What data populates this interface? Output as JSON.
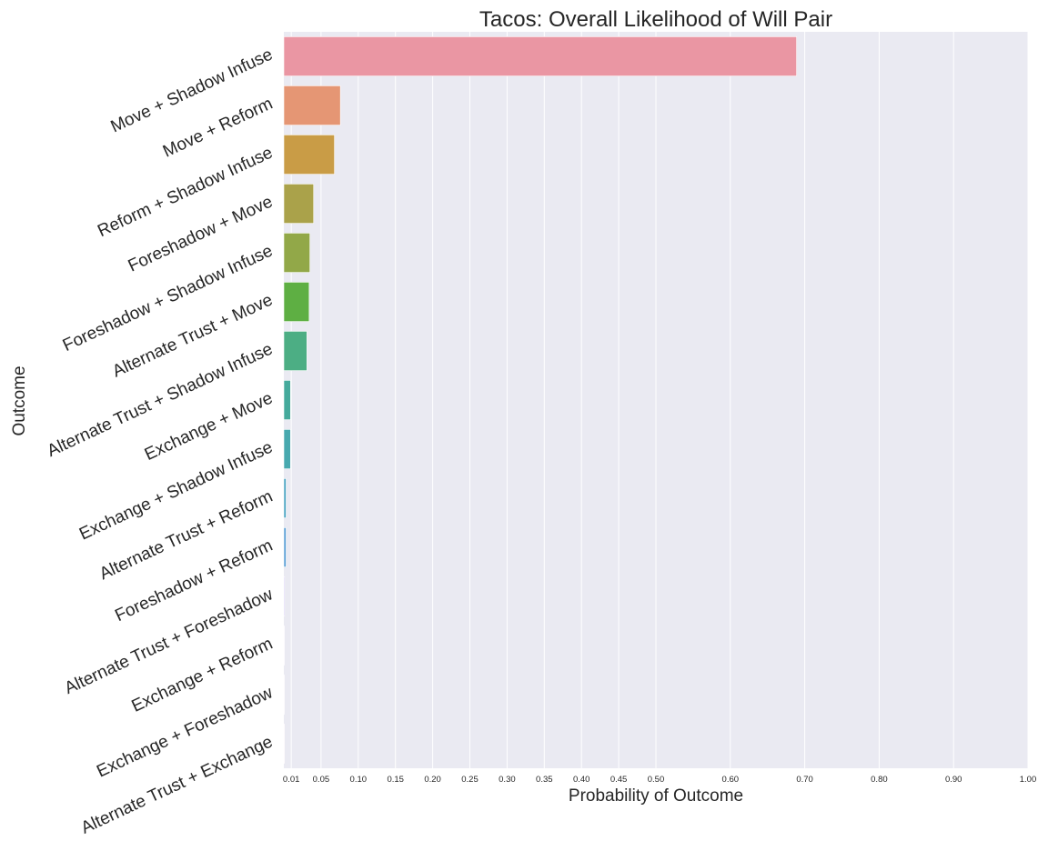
{
  "chart_data": {
    "type": "bar",
    "orientation": "horizontal",
    "title": "Tacos: Overall Likelihood of Will Pair",
    "xlabel": "Probability of Outcome",
    "ylabel": "Outcome",
    "xlim": [
      0,
      1.0
    ],
    "xticks": [
      0.01,
      0.05,
      0.1,
      0.15,
      0.2,
      0.25,
      0.3,
      0.35,
      0.4,
      0.45,
      0.5,
      0.6,
      0.7,
      0.8,
      0.9,
      1.0
    ],
    "xtick_labels": [
      "0.01",
      "0.05",
      "0.10",
      "0.15",
      "0.20",
      "0.25",
      "0.30",
      "0.35",
      "0.40",
      "0.45",
      "0.50",
      "0.60",
      "0.70",
      "0.80",
      "0.90",
      "1.00"
    ],
    "grid": true,
    "background": "#eaeaf2",
    "categories": [
      "Move + Shadow Infuse",
      "Move + Reform",
      "Reform + Shadow Infuse",
      "Foreshadow + Move",
      "Foreshadow + Shadow Infuse",
      "Alternate Trust + Move",
      "Alternate Trust + Shadow Infuse",
      "Exchange + Move",
      "Exchange + Shadow Infuse",
      "Alternate Trust + Reform",
      "Foreshadow + Reform",
      "Alternate Trust + Foreshadow",
      "Exchange + Reform",
      "Exchange + Foreshadow",
      "Alternate Trust + Exchange"
    ],
    "values": [
      0.689,
      0.076,
      0.068,
      0.04,
      0.035,
      0.034,
      0.031,
      0.009,
      0.009,
      0.003,
      0.003,
      0.001,
      0.0005,
      0.0003,
      0.0002
    ],
    "colors": [
      "#ea96a3",
      "#e59674",
      "#c99c46",
      "#aaa24a",
      "#92a848",
      "#5eaf43",
      "#4cae84",
      "#45aa9c",
      "#48a9af",
      "#4aa4c2",
      "#5aa0d6",
      "#a28ee3",
      "#c889e0",
      "#dd84cf",
      "#e98cbc"
    ]
  }
}
